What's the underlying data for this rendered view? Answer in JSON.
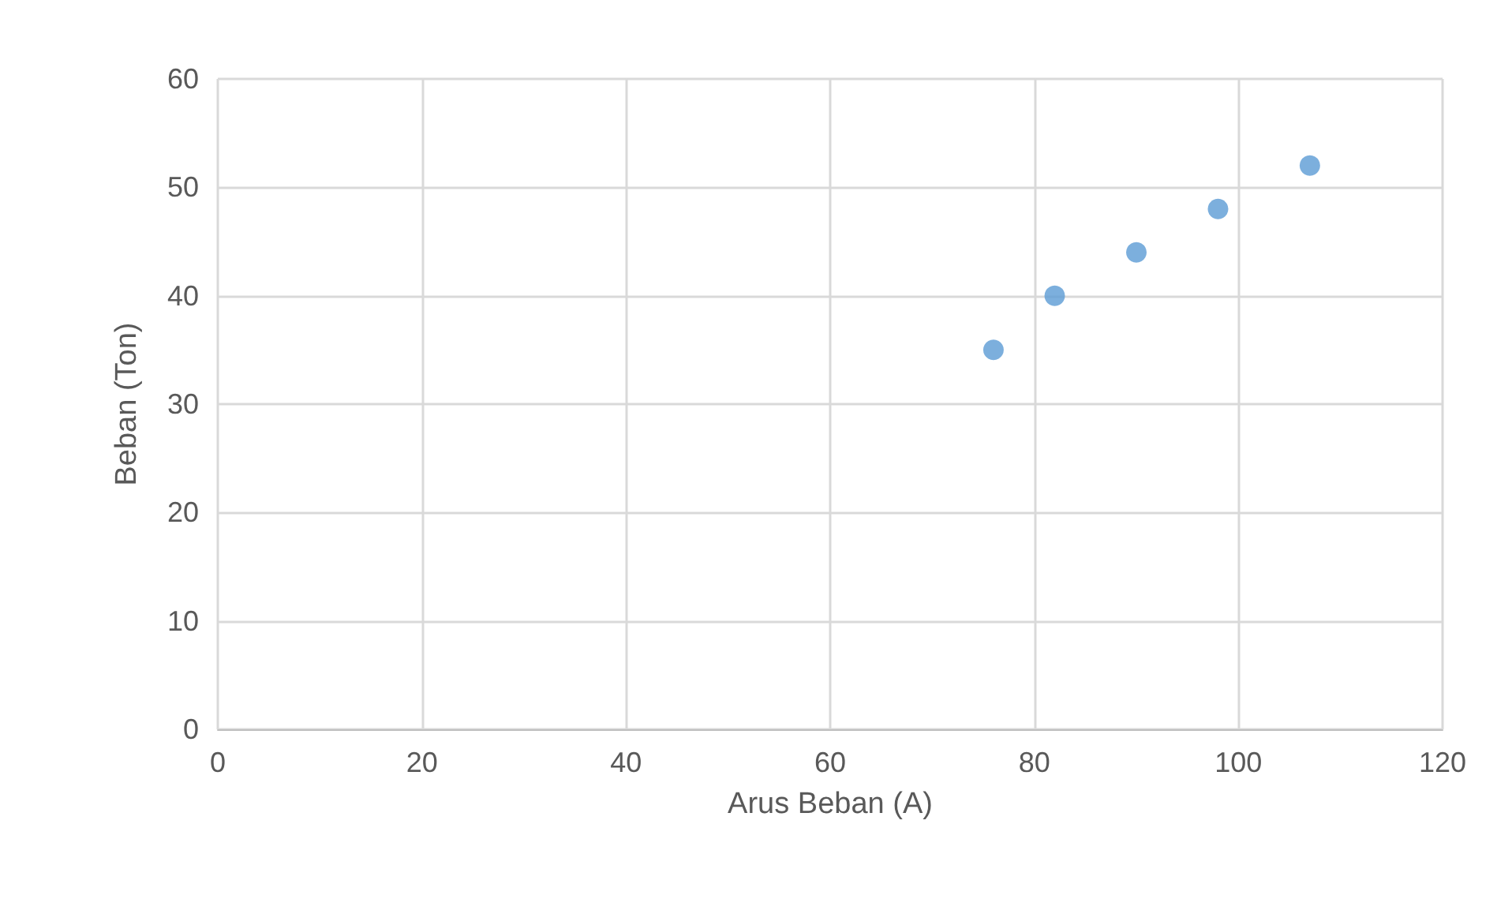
{
  "chart_data": {
    "type": "scatter",
    "xlabel": "Arus Beban (A)",
    "ylabel": "Beban (Ton)",
    "x": [
      76,
      82,
      90,
      98,
      107
    ],
    "series": [
      {
        "color": "#5b9bd5",
        "values": [
          35,
          40,
          44,
          48,
          52
        ]
      }
    ],
    "xlim": [
      0,
      120
    ],
    "xticks": [
      0,
      20,
      40,
      60,
      80,
      100,
      120
    ],
    "ylim": [
      0,
      60
    ],
    "yticks": [
      0,
      10,
      20,
      30,
      40,
      50,
      60
    ],
    "grid": true,
    "marker": "circle"
  }
}
